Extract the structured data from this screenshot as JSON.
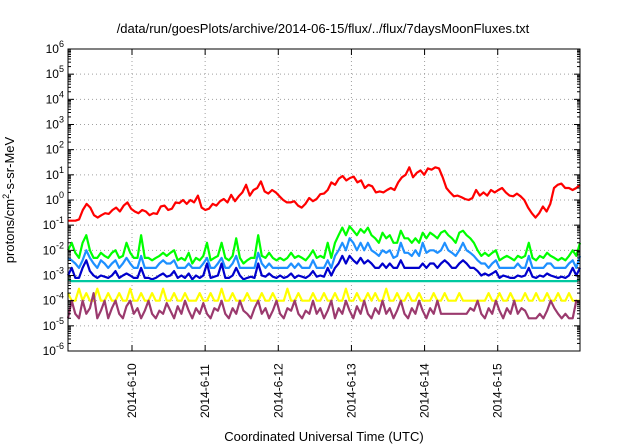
{
  "chart_data": {
    "type": "line",
    "title": "/data/run/goesPlots/archive/2014-06-15/flux/../flux/7daysMoonFluxes.txt",
    "xlabel": "Coordinated Universal Time (UTC)",
    "ylabel": "protons/cm2-s-sr-MeV",
    "ylabel_parts": {
      "pre": "protons/cm",
      "sup": "2",
      "post": "-s-sr-MeV"
    },
    "yscale": "log",
    "ylim": [
      -6,
      6
    ],
    "yticks": [
      "10-6",
      "10-5",
      "10-4",
      "10-3",
      "10-2",
      "10-1",
      "100",
      "101",
      "102",
      "103",
      "104",
      "105",
      "106"
    ],
    "xlim": [
      "2014-06-09T03:00",
      "2014-06-16T03:00"
    ],
    "xticks": [
      "2014-6-10",
      "2014-6-11",
      "2014-6-12",
      "2014-6-13",
      "2014-6-14",
      "2014-6-15"
    ],
    "grid": true,
    "series": [
      {
        "color": "#ff0000",
        "values": [
          0.15,
          0.15,
          0.15,
          0.17,
          0.4,
          0.7,
          0.5,
          0.25,
          0.2,
          0.25,
          0.3,
          0.28,
          0.4,
          0.5,
          0.35,
          0.6,
          0.8,
          0.45,
          0.35,
          0.3,
          0.4,
          0.35,
          0.25,
          0.3,
          0.28,
          0.55,
          0.6,
          0.4,
          0.45,
          0.8,
          0.75,
          1.0,
          0.7,
          1.0,
          0.8,
          1.5,
          0.5,
          0.4,
          0.45,
          0.7,
          0.6,
          0.9,
          1.1,
          0.8,
          1.6,
          0.9,
          1.4,
          2.0,
          4.0,
          1.5,
          2.5,
          3.0,
          5.5,
          2.2,
          1.8,
          2.5,
          2.0,
          1.4,
          1.0,
          0.8,
          0.8,
          0.9,
          0.6,
          0.5,
          0.7,
          1.2,
          0.9,
          1.1,
          1.7,
          1.8,
          2.5,
          5.0,
          4.0,
          7.0,
          9.0,
          6.0,
          7.5,
          8.5,
          5.0,
          6.0,
          3.0,
          4.0,
          3.5,
          2.0,
          2.2,
          2.0,
          2.5,
          3.0,
          2.5,
          5.0,
          8.0,
          10.0,
          20.0,
          8.0,
          12.0,
          15.0,
          10.0,
          18.0,
          16.0,
          20.0,
          18.0,
          8.0,
          3.0,
          2.0,
          1.4,
          1.5,
          1.3,
          1.1,
          1.0,
          1.2,
          2.5,
          1.5,
          2.0,
          1.5,
          2.5,
          2.0,
          2.5,
          3.0,
          2.0,
          1.5,
          1.4,
          1.8,
          1.4,
          1.0,
          0.5,
          0.3,
          0.2,
          0.3,
          0.55,
          0.35,
          0.7,
          3.0,
          4.0,
          4.5,
          3.0,
          3.0,
          2.5,
          3.0,
          4.0
        ]
      },
      {
        "color": "#00ff00",
        "values": [
          0.01,
          0.02,
          0.008,
          0.005,
          0.02,
          0.04,
          0.01,
          0.005,
          0.005,
          0.008,
          0.006,
          0.005,
          0.008,
          0.01,
          0.005,
          0.006,
          0.02,
          0.008,
          0.005,
          0.005,
          0.04,
          0.005,
          0.005,
          0.004,
          0.005,
          0.006,
          0.008,
          0.006,
          0.008,
          0.01,
          0.004,
          0.005,
          0.004,
          0.008,
          0.003,
          0.005,
          0.004,
          0.006,
          0.02,
          0.004,
          0.005,
          0.006,
          0.02,
          0.005,
          0.004,
          0.006,
          0.03,
          0.005,
          0.003,
          0.004,
          0.005,
          0.005,
          0.04,
          0.006,
          0.005,
          0.008,
          0.005,
          0.004,
          0.005,
          0.004,
          0.005,
          0.008,
          0.005,
          0.006,
          0.005,
          0.004,
          0.006,
          0.01,
          0.005,
          0.006,
          0.005,
          0.02,
          0.005,
          0.02,
          0.04,
          0.08,
          0.04,
          0.09,
          0.06,
          0.04,
          0.07,
          0.05,
          0.08,
          0.04,
          0.03,
          0.02,
          0.05,
          0.03,
          0.04,
          0.02,
          0.02,
          0.06,
          0.03,
          0.03,
          0.02,
          0.03,
          0.02,
          0.05,
          0.03,
          0.05,
          0.04,
          0.03,
          0.05,
          0.06,
          0.04,
          0.03,
          0.02,
          0.05,
          0.06,
          0.04,
          0.03,
          0.02,
          0.01,
          0.006,
          0.008,
          0.006,
          0.008,
          0.01,
          0.004,
          0.005,
          0.006,
          0.005,
          0.004,
          0.006,
          0.005,
          0.006,
          0.02,
          0.005,
          0.004,
          0.006,
          0.005,
          0.008,
          0.006,
          0.005,
          0.004,
          0.005,
          0.004,
          0.006,
          0.01,
          0.006,
          0.02
        ]
      },
      {
        "color": "#1e90ff",
        "values": [
          0.005,
          0.004,
          0.003,
          0.002,
          0.004,
          0.01,
          0.005,
          0.003,
          0.002,
          0.004,
          0.003,
          0.002,
          0.003,
          0.004,
          0.002,
          0.003,
          0.005,
          0.003,
          0.002,
          0.002,
          0.006,
          0.002,
          0.002,
          0.002,
          0.002,
          0.003,
          0.004,
          0.003,
          0.003,
          0.004,
          0.002,
          0.002,
          0.002,
          0.003,
          0.002,
          0.002,
          0.002,
          0.003,
          0.005,
          0.002,
          0.002,
          0.003,
          0.005,
          0.002,
          0.002,
          0.003,
          0.006,
          0.002,
          0.002,
          0.002,
          0.002,
          0.002,
          0.008,
          0.003,
          0.002,
          0.003,
          0.002,
          0.002,
          0.002,
          0.002,
          0.002,
          0.003,
          0.002,
          0.003,
          0.002,
          0.002,
          0.002,
          0.004,
          0.002,
          0.002,
          0.002,
          0.004,
          0.002,
          0.006,
          0.01,
          0.02,
          0.01,
          0.03,
          0.02,
          0.01,
          0.02,
          0.01,
          0.02,
          0.01,
          0.008,
          0.006,
          0.01,
          0.008,
          0.01,
          0.005,
          0.006,
          0.02,
          0.008,
          0.008,
          0.006,
          0.01,
          0.006,
          0.02,
          0.008,
          0.01,
          0.01,
          0.008,
          0.01,
          0.02,
          0.01,
          0.008,
          0.006,
          0.01,
          0.02,
          0.01,
          0.008,
          0.006,
          0.004,
          0.003,
          0.003,
          0.002,
          0.003,
          0.004,
          0.002,
          0.002,
          0.002,
          0.002,
          0.002,
          0.003,
          0.002,
          0.002,
          0.006,
          0.002,
          0.002,
          0.002,
          0.002,
          0.003,
          0.003,
          0.002,
          0.002,
          0.002,
          0.002,
          0.003,
          0.004,
          0.002,
          0.006
        ]
      },
      {
        "color": "#0000cc",
        "values": [
          0.001,
          0.002,
          0.0008,
          0.0008,
          0.002,
          0.004,
          0.0015,
          0.001,
          0.0008,
          0.001,
          0.0009,
          0.0008,
          0.001,
          0.0015,
          0.0008,
          0.001,
          0.0012,
          0.001,
          0.0008,
          0.0008,
          0.002,
          0.0008,
          0.0008,
          0.0007,
          0.0008,
          0.001,
          0.0012,
          0.0009,
          0.001,
          0.0015,
          0.0008,
          0.001,
          0.0008,
          0.0012,
          0.0007,
          0.001,
          0.0008,
          0.001,
          0.003,
          0.0008,
          0.0009,
          0.001,
          0.003,
          0.0008,
          0.0008,
          0.001,
          0.002,
          0.001,
          0.0007,
          0.0008,
          0.0009,
          0.0008,
          0.003,
          0.001,
          0.0009,
          0.0012,
          0.0009,
          0.0008,
          0.001,
          0.0008,
          0.0009,
          0.0012,
          0.0008,
          0.001,
          0.0009,
          0.0008,
          0.001,
          0.0015,
          0.0009,
          0.001,
          0.0009,
          0.002,
          0.001,
          0.002,
          0.003,
          0.006,
          0.003,
          0.006,
          0.004,
          0.003,
          0.005,
          0.003,
          0.004,
          0.003,
          0.002,
          0.002,
          0.003,
          0.002,
          0.003,
          0.002,
          0.002,
          0.004,
          0.002,
          0.002,
          0.002,
          0.002,
          0.002,
          0.003,
          0.002,
          0.003,
          0.003,
          0.002,
          0.003,
          0.004,
          0.003,
          0.002,
          0.002,
          0.003,
          0.004,
          0.003,
          0.002,
          0.002,
          0.0015,
          0.001,
          0.0012,
          0.001,
          0.0012,
          0.0015,
          0.0008,
          0.001,
          0.0009,
          0.0008,
          0.0008,
          0.001,
          0.0009,
          0.001,
          0.002,
          0.0009,
          0.0008,
          0.001,
          0.0009,
          0.0012,
          0.001,
          0.0009,
          0.0008,
          0.0009,
          0.0008,
          0.001,
          0.002,
          0.001,
          0.002
        ]
      },
      {
        "color": "#00c8a0",
        "values": [
          0.0007,
          0.0006,
          0.0006,
          0.0006,
          0.0006,
          0.0006,
          0.0006,
          0.0006,
          0.0006,
          0.0006,
          0.0006,
          0.0006,
          0.0006,
          0.0006,
          0.0006,
          0.0006,
          0.0006,
          0.0006,
          0.0006,
          0.0006,
          0.0006,
          0.0006,
          0.0006,
          0.0006,
          0.0006,
          0.0006,
          0.0006,
          0.0006,
          0.0006,
          0.0006,
          0.0006,
          0.0006,
          0.0006,
          0.0006,
          0.0006,
          0.0006,
          0.0006,
          0.0006,
          0.0006,
          0.0006,
          0.0006,
          0.0006,
          0.0006,
          0.0006,
          0.0006,
          0.0006,
          0.0006,
          0.0006,
          0.0006,
          0.0006,
          0.0006,
          0.0006,
          0.0006,
          0.0006,
          0.0006,
          0.0006,
          0.0006,
          0.0006,
          0.0006,
          0.0006,
          0.0006,
          0.0006,
          0.0006,
          0.0006,
          0.0006,
          0.0006,
          0.0006,
          0.0006,
          0.0006,
          0.0006,
          0.0006,
          0.0006,
          0.0006,
          0.0006,
          0.0006,
          0.0006,
          0.0006,
          0.0006,
          0.0006,
          0.0006,
          0.0006,
          0.0006,
          0.0006,
          0.0006,
          0.0006,
          0.0006,
          0.0006,
          0.0006,
          0.0006,
          0.0006,
          0.0006,
          0.0006,
          0.0006,
          0.0006,
          0.0006,
          0.0006,
          0.0006,
          0.0006,
          0.0006,
          0.0006,
          0.0006,
          0.0006,
          0.0006,
          0.0006,
          0.0006,
          0.0006,
          0.0006,
          0.0006,
          0.0006,
          0.0006,
          0.0006,
          0.0006,
          0.0006,
          0.0006,
          0.0006,
          0.0006,
          0.0006,
          0.0006,
          0.0006,
          0.0006,
          0.0006,
          0.0006,
          0.0006,
          0.0006,
          0.0006,
          0.0006,
          0.0006,
          0.0006,
          0.0006,
          0.0006,
          0.0006,
          0.0006,
          0.0006,
          0.0006,
          0.0006,
          0.0006,
          0.0006,
          0.0006,
          0.0006,
          0.0006,
          0.0006,
          0.0006,
          0.0007
        ]
      },
      {
        "color": "#ffff00",
        "values": [
          0.0002,
          0.0001,
          0.0001,
          0.0003,
          0.0001,
          0.0002,
          0.0001,
          0.0001,
          0.0003,
          0.0001,
          0.0001,
          0.0002,
          0.0001,
          0.0001,
          0.0002,
          0.0001,
          0.0001,
          0.0003,
          0.0001,
          0.0001,
          0.0002,
          0.0001,
          0.0001,
          0.0002,
          0.0001,
          0.0001,
          0.0003,
          0.0001,
          0.0001,
          0.0002,
          0.0001,
          0.0001,
          0.0002,
          0.0001,
          0.0001,
          0.0001,
          0.0002,
          0.0001,
          0.0001,
          0.0002,
          0.0001,
          0.0001,
          0.0003,
          0.0001,
          0.0001,
          0.0002,
          0.0001,
          0.0001,
          0.0001,
          0.0002,
          0.0001,
          0.0001,
          0.0001,
          0.0002,
          0.0001,
          0.0001,
          0.0002,
          0.0001,
          0.0001,
          0.0001,
          0.0003,
          0.0001,
          0.0001,
          0.0002,
          0.0001,
          0.0001,
          0.0001,
          0.0002,
          0.0001,
          0.0001,
          0.0002,
          0.0001,
          0.0001,
          0.0002,
          0.0001,
          0.0001,
          0.0003,
          0.0001,
          0.0001,
          0.0002,
          0.0001,
          0.0001,
          0.0002,
          0.0001,
          0.0002,
          0.0001,
          0.0001,
          0.0003,
          0.0001,
          0.0001,
          0.0002,
          0.0001,
          0.0001,
          0.0002,
          0.0001,
          0.0001,
          0.0002,
          0.0001,
          0.0001,
          0.0001,
          0.0002,
          0.0001,
          0.0001,
          0.0002,
          0.0001,
          0.0001,
          0.0001,
          0.0002,
          0.0001,
          0.0001,
          0.0001,
          0.0001,
          0.0001,
          0.0001,
          0.0001,
          0.0002,
          0.0001,
          0.0001,
          0.0002,
          0.0001,
          0.0001,
          0.0002,
          0.0001,
          0.0001,
          0.0001,
          0.0002,
          0.0001,
          0.0001,
          0.0002,
          0.0001,
          0.0001,
          0.0002,
          0.0001,
          0.0001,
          0.0002,
          0.0001,
          0.0001,
          0.0002,
          0.0001,
          0.0001,
          0.0001
        ]
      },
      {
        "color": "#9b3a6e",
        "values": [
          2e-05,
          0.0001,
          3e-05,
          2e-05,
          0.0001,
          3e-05,
          5e-05,
          0.0002,
          2e-05,
          4e-05,
          0.0001,
          2e-05,
          5e-05,
          0.0001,
          3e-05,
          2e-05,
          6e-05,
          0.0001,
          3e-05,
          5e-05,
          2e-05,
          4e-05,
          0.0001,
          3e-05,
          2e-05,
          4e-05,
          3e-05,
          8e-05,
          4e-05,
          2e-05,
          6e-05,
          3e-05,
          0.0001,
          4e-05,
          2e-05,
          5e-05,
          3e-05,
          8e-05,
          3e-05,
          2e-05,
          5e-05,
          4e-05,
          0.0001,
          3e-05,
          2e-05,
          5e-05,
          3e-05,
          0.0001,
          4e-05,
          3e-05,
          2e-05,
          5e-05,
          0.0001,
          3e-05,
          5e-05,
          2e-05,
          4e-05,
          0.0001,
          3e-05,
          2e-05,
          5e-05,
          4e-05,
          0.0001,
          3e-05,
          2e-05,
          4e-05,
          3e-05,
          0.0001,
          3e-05,
          5e-05,
          2e-05,
          4e-05,
          0.0001,
          2e-05,
          5e-05,
          3e-05,
          0.0001,
          4e-05,
          2e-05,
          6e-05,
          3e-05,
          0.0001,
          3e-05,
          2e-05,
          5e-05,
          3e-05,
          0.0001,
          3e-05,
          5e-05,
          2e-05,
          4e-05,
          0.0001,
          3e-05,
          2e-05,
          5e-05,
          3e-05,
          0.0001,
          4e-05,
          2e-05,
          5e-05,
          3e-05,
          0.0001,
          3e-05,
          3e-05,
          3e-05,
          3e-05,
          3e-05,
          3e-05,
          3e-05,
          3e-05,
          5e-05,
          4e-05,
          0.0001,
          3e-05,
          2e-05,
          5e-05,
          3e-05,
          0.0001,
          4e-05,
          2e-05,
          5e-05,
          3e-05,
          0.0001,
          3e-05,
          5e-05,
          4e-05,
          2e-05,
          2e-05,
          2e-05,
          3e-05,
          2e-05,
          4e-05,
          0.0001,
          5e-05,
          3e-05,
          2e-05,
          3e-05,
          2e-05,
          2e-05,
          0.0001,
          8e-05
        ]
      }
    ]
  }
}
